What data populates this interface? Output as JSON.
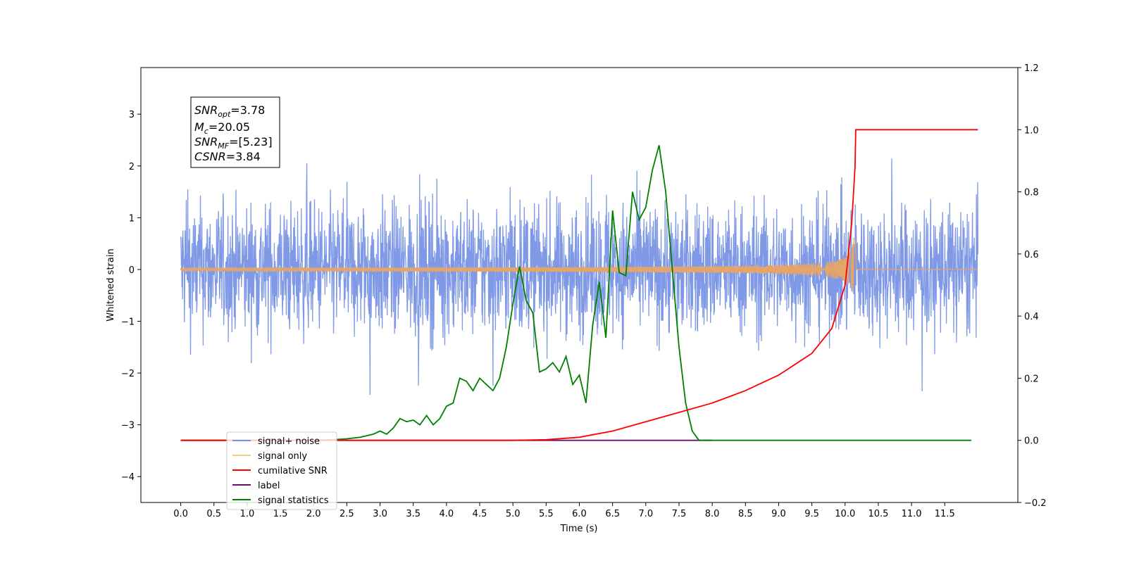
{
  "chart_data": {
    "type": "line",
    "xlabel": "Time (s)",
    "ylabel": "Whitened strain",
    "xlim": [
      -0.6,
      12.6
    ],
    "ylim": [
      -4.5,
      3.9
    ],
    "ylim_right": [
      -0.2,
      1.2
    ],
    "x_ticks": [
      "0.0",
      "0.5",
      "1.0",
      "1.5",
      "2.0",
      "2.5",
      "3.0",
      "3.5",
      "4.0",
      "4.5",
      "5.0",
      "5.5",
      "6.0",
      "6.5",
      "7.0",
      "7.5",
      "8.0",
      "8.5",
      "9.0",
      "9.5",
      "10.0",
      "10.5",
      "11.0",
      "11.5"
    ],
    "y_ticks_left": [
      "3",
      "2",
      "1",
      "0",
      "−1",
      "−2",
      "−3",
      "−4"
    ],
    "y_ticks_right": [
      "1.2",
      "1.0",
      "0.8",
      "0.6",
      "0.4",
      "0.2",
      "0.0",
      "−0.2"
    ],
    "grid": false,
    "legend_position": "lower-left",
    "annotation": {
      "snr_opt": "3.78",
      "mc": "20.05",
      "snr_mf": "[5.23]",
      "csnr": "3.84"
    },
    "series": [
      {
        "name": "signal+ noise",
        "axis": "left",
        "color": "#7893e6",
        "mean": 0.0,
        "amplitude": 1.4,
        "duration": [
          0.0,
          12.0
        ]
      },
      {
        "name": "signal only",
        "axis": "left",
        "color": "#f8c88a",
        "chirp_end": 10.15,
        "peak_amplitude": 0.75
      },
      {
        "name": "cumilative SNR",
        "axis": "right",
        "color": "#ff0000",
        "x": [
          0.0,
          5.0,
          5.5,
          6.0,
          6.5,
          7.0,
          7.5,
          8.0,
          8.5,
          9.0,
          9.5,
          9.8,
          10.0,
          10.1,
          10.15,
          10.16,
          12.0
        ],
        "y": [
          0.0,
          0.0,
          0.002,
          0.01,
          0.03,
          0.06,
          0.09,
          0.12,
          0.16,
          0.21,
          0.28,
          0.36,
          0.5,
          0.7,
          0.88,
          1.0,
          1.0
        ]
      },
      {
        "name": "label",
        "axis": "right",
        "color": "#6a0f6a",
        "x": [
          0.0,
          8.0
        ],
        "y": [
          0.0,
          0.0
        ]
      },
      {
        "name": "signal statistics",
        "axis": "right",
        "color": "#008000",
        "x": [
          0.0,
          2.0,
          2.3,
          2.5,
          2.7,
          2.8,
          2.9,
          3.0,
          3.1,
          3.2,
          3.3,
          3.4,
          3.5,
          3.6,
          3.7,
          3.8,
          3.9,
          4.0,
          4.1,
          4.2,
          4.3,
          4.4,
          4.5,
          4.6,
          4.7,
          4.8,
          4.9,
          5.0,
          5.1,
          5.2,
          5.3,
          5.4,
          5.5,
          5.6,
          5.7,
          5.8,
          5.9,
          6.0,
          6.1,
          6.2,
          6.3,
          6.4,
          6.5,
          6.6,
          6.7,
          6.8,
          6.9,
          7.0,
          7.1,
          7.2,
          7.3,
          7.4,
          7.5,
          7.6,
          7.7,
          7.8,
          8.0,
          9.0,
          10.0,
          11.0,
          11.9
        ],
        "y": [
          0.0,
          0.0,
          0.002,
          0.005,
          0.01,
          0.015,
          0.02,
          0.03,
          0.02,
          0.04,
          0.07,
          0.06,
          0.065,
          0.05,
          0.08,
          0.05,
          0.07,
          0.11,
          0.12,
          0.2,
          0.19,
          0.16,
          0.2,
          0.18,
          0.16,
          0.2,
          0.3,
          0.44,
          0.56,
          0.45,
          0.41,
          0.22,
          0.23,
          0.25,
          0.22,
          0.27,
          0.18,
          0.21,
          0.12,
          0.37,
          0.51,
          0.33,
          0.74,
          0.54,
          0.53,
          0.8,
          0.71,
          0.75,
          0.87,
          0.95,
          0.8,
          0.55,
          0.3,
          0.12,
          0.03,
          0.0,
          0.0,
          0.0,
          0.0,
          0.0,
          0.0
        ]
      }
    ]
  }
}
